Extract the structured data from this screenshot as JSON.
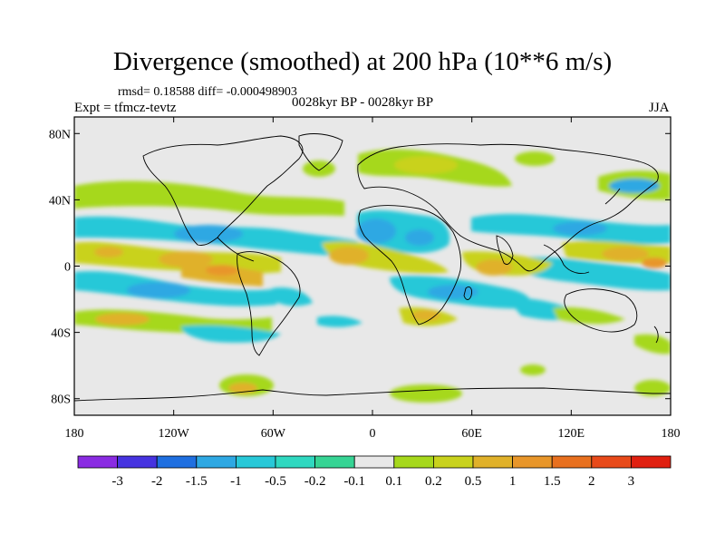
{
  "title": "Divergence (smoothed) at 200 hPa (10**6 m/s)",
  "stats": "rmsd= 0.18588 diff= -0.000498903",
  "experiment": "Expt = tfmcz-tevtz",
  "period": "0028kyr BP - 0028kyr BP",
  "season": "JJA",
  "map": {
    "background_color": "#e8e8e8",
    "lat_ticks": [
      {
        "label": "80N",
        "value": 80
      },
      {
        "label": "40N",
        "value": 40
      },
      {
        "label": "0",
        "value": 0
      },
      {
        "label": "40S",
        "value": -40
      },
      {
        "label": "80S",
        "value": -80
      }
    ],
    "lon_ticks": [
      {
        "label": "180",
        "value": -180
      },
      {
        "label": "120W",
        "value": -120
      },
      {
        "label": "60W",
        "value": -60
      },
      {
        "label": "0",
        "value": 0
      },
      {
        "label": "60E",
        "value": 60
      },
      {
        "label": "120E",
        "value": 120
      },
      {
        "label": "180",
        "value": 180
      }
    ]
  },
  "colorbar": {
    "colors": [
      "#8a2be2",
      "#4633e0",
      "#1f6fe0",
      "#2ea8e3",
      "#28c8d8",
      "#2fd8c0",
      "#36d494",
      "#e8e8e8",
      "#a6d81c",
      "#c9d21d",
      "#e0b12a",
      "#e8962a",
      "#e8701f",
      "#e84a1a",
      "#e02010"
    ],
    "labels": [
      "-3",
      "-2",
      "-1.5",
      "-1",
      "-0.5",
      "-0.2",
      "-0.1",
      "0.1",
      "0.2",
      "0.5",
      "1",
      "1.5",
      "2",
      "3"
    ]
  }
}
